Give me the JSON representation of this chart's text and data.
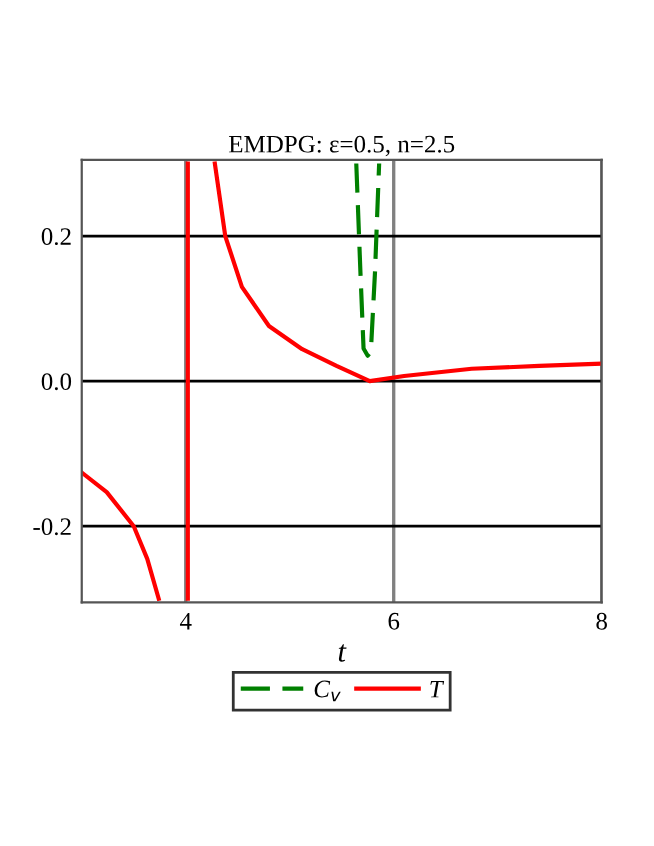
{
  "chart_data": {
    "type": "line",
    "title": "EMDPG: ε=0.5, n=2.5",
    "xlabel": "t",
    "series": [
      {
        "name": "C$_{v}$",
        "color": "#008000",
        "line_style": "dashed",
        "x": [
          5.64,
          5.68,
          5.71,
          5.75,
          5.78,
          5.82,
          5.86
        ],
        "values": [
          0.3,
          0.15,
          0.045,
          0.035,
          0.04,
          0.15,
          0.3
        ]
      },
      {
        "name": "T",
        "color": "#ff0000",
        "line_style": "solid",
        "x": [
          3.0,
          3.24,
          3.5,
          3.63,
          3.74,
          3.9,
          4.02,
          4.02,
          4.1,
          4.28,
          4.38,
          4.54,
          4.8,
          5.12,
          5.45,
          5.77,
          6.1,
          6.75,
          7.4,
          8.0
        ],
        "values": [
          -0.126,
          -0.153,
          -0.2,
          -0.245,
          -0.3,
          null,
          -0.3,
          0.3,
          null,
          0.3,
          0.2,
          0.13,
          0.076,
          0.044,
          0.021,
          0.0,
          0.007,
          0.017,
          0.021,
          0.024
        ]
      }
    ],
    "xlim": [
      3,
      8
    ],
    "xticks": [
      4,
      6,
      8
    ],
    "ylim": [
      -0.305,
      0.305
    ],
    "yticks": [
      {
        "value": -0.2,
        "label": "-0.2"
      },
      {
        "value": 0.0,
        "label": "0.0"
      },
      {
        "value": 0.2,
        "label": "0.2"
      }
    ],
    "grid": true,
    "legend": "bottom"
  }
}
